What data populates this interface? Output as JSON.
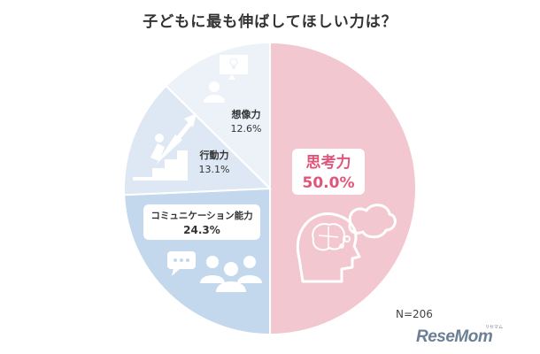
{
  "title": "子どもに最も伸ばしてほしい力は？",
  "n_label": "N=206",
  "logo": {
    "text": "ReseMom",
    "sub": "リセマム"
  },
  "colors": {
    "slice_shikoryoku": "#f2c7cf",
    "slice_comm": "#c3d8ec",
    "slice_kodo": "#dde8f4",
    "slice_sozo": "#edf2f9",
    "accent_red": "#e0557a",
    "icon": "#ffffff",
    "text_dark": "#333333"
  },
  "icons": [
    "brain-head-icon",
    "thought-bubble-icon",
    "chat-bubble-icon",
    "people-group-icon",
    "climb-stairs-icon",
    "lightbulb-person-icon"
  ],
  "chart_data": {
    "type": "pie",
    "title": "子どもに最も伸ばしてほしい力は？",
    "labels": [
      "思考力",
      "コミュニケーション能力",
      "行動力",
      "想像力"
    ],
    "values": [
      50.0,
      24.3,
      13.1,
      12.6
    ],
    "value_labels": [
      "50.0%",
      "24.3%",
      "13.1%",
      "12.6%"
    ],
    "start_angle": "12 o'clock",
    "direction": "clockwise",
    "n": "N=206"
  }
}
